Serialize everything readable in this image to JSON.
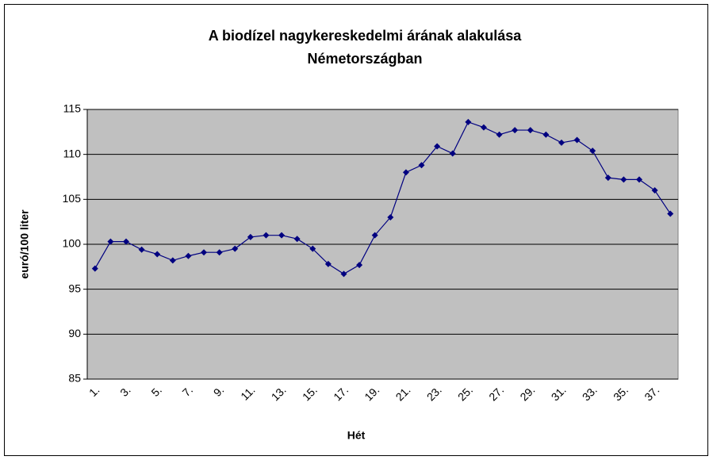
{
  "chart_data": {
    "type": "line",
    "title": [
      "A biodízel nagykereskedelmi árának alakulása",
      "Németországban"
    ],
    "x_label": "Hét",
    "y_label": "euró/100 liter",
    "categories": [
      "1.",
      null,
      "3.",
      null,
      "5.",
      null,
      "7.",
      null,
      "9.",
      null,
      "11.",
      null,
      "13.",
      null,
      "15.",
      null,
      "17.",
      null,
      "19.",
      null,
      "21.",
      null,
      "23.",
      null,
      "25.",
      null,
      "27.",
      null,
      "29.",
      null,
      "31.",
      null,
      "33.",
      null,
      "35.",
      null,
      "37.",
      null
    ],
    "series": [
      {
        "name": "euró/100 liter",
        "color": "#000080",
        "values": [
          97.3,
          100.3,
          100.3,
          99.4,
          98.9,
          98.2,
          98.7,
          99.1,
          99.1,
          99.5,
          100.8,
          101.0,
          101.0,
          100.6,
          99.5,
          97.8,
          96.7,
          97.7,
          101.0,
          103.0,
          108.0,
          108.8,
          110.9,
          110.1,
          113.6,
          113.0,
          112.2,
          112.7,
          112.7,
          112.2,
          111.3,
          111.6,
          110.4,
          107.4,
          107.2,
          107.2,
          106.0,
          103.4
        ]
      }
    ],
    "ylim": [
      85,
      115
    ],
    "yticks": [
      85,
      90,
      95,
      100,
      105,
      110,
      115
    ],
    "grid": true
  }
}
